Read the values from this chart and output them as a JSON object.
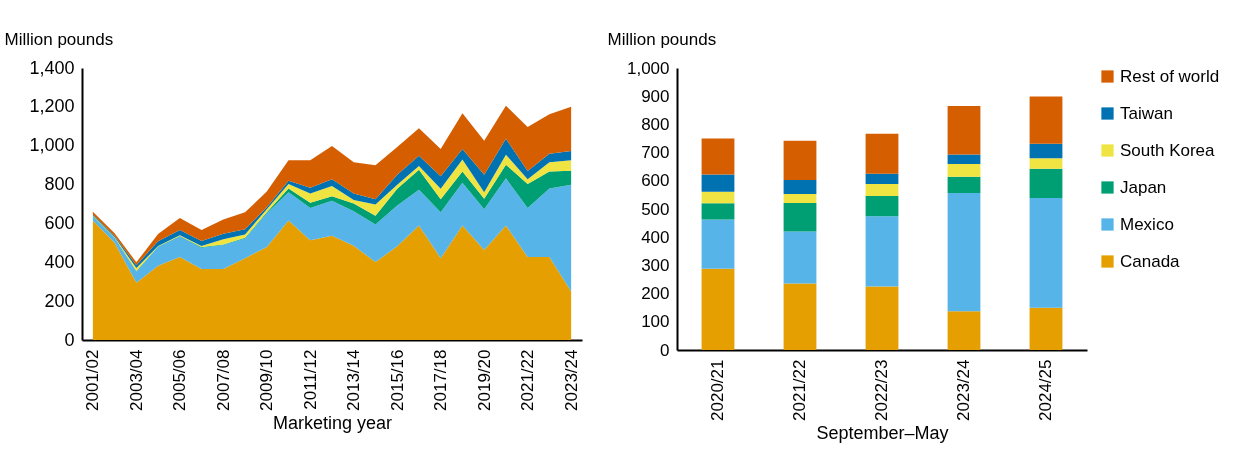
{
  "chart_data": [
    {
      "type": "area",
      "stacked": true,
      "ylabel": "Million pounds",
      "xlabel": "Marketing year",
      "categories": [
        "2001/02",
        null,
        "2003/04",
        null,
        "2005/06",
        null,
        "2007/08",
        null,
        "2009/10",
        null,
        "2011/12",
        null,
        "2013/14",
        null,
        "2015/16",
        null,
        "2017/18",
        null,
        "2019/20",
        null,
        "2021/22",
        null,
        "2023/24"
      ],
      "series": [
        {
          "color": "#e69f00",
          "values": [
            615,
            500,
            295,
            382,
            427,
            366,
            366,
            421,
            479,
            615,
            514,
            537,
            485,
            401,
            483,
            589,
            421,
            589,
            463,
            589,
            427,
            427,
            250
          ]
        },
        {
          "color": "#56b4e9",
          "values": [
            20,
            25,
            58,
            97,
            106,
            109,
            123,
            101,
            174,
            145,
            165,
            180,
            178,
            194,
            209,
            184,
            236,
            220,
            210,
            243,
            252,
            353,
            549
          ]
        },
        {
          "color": "#009e73",
          "values": [
            3,
            2,
            2,
            2,
            2,
            4,
            3,
            4,
            5,
            20,
            27,
            23,
            39,
            45,
            87,
            103,
            68,
            58,
            54,
            70,
            124,
            87,
            72
          ]
        },
        {
          "color": "#f0e442",
          "values": [
            3,
            3,
            15,
            3,
            4,
            5,
            26,
            17,
            15,
            23,
            48,
            53,
            19,
            58,
            20,
            20,
            54,
            62,
            33,
            52,
            25,
            48,
            54
          ]
        },
        {
          "color": "#0072b2",
          "values": [
            5,
            5,
            15,
            24,
            27,
            26,
            29,
            27,
            10,
            17,
            29,
            35,
            33,
            27,
            52,
            52,
            64,
            54,
            91,
            82,
            42,
            43,
            48
          ]
        },
        {
          "color": "#d55e00",
          "values": [
            14,
            15,
            15,
            37,
            62,
            56,
            73,
            87,
            81,
            105,
            142,
            171,
            161,
            175,
            142,
            142,
            140,
            184,
            175,
            170,
            226,
            204,
            228
          ]
        }
      ],
      "ylim": [
        0,
        1400
      ],
      "yticks": [
        0,
        {
          "value": 200,
          "label": "200"
        },
        {
          "value": 400,
          "label": "400"
        },
        {
          "value": 600,
          "label": "600"
        },
        {
          "value": 800,
          "label": "800"
        },
        {
          "value": 1000,
          "label": "1,000"
        },
        {
          "value": 1200,
          "label": "1,200"
        },
        {
          "value": 1400,
          "label": "1,400"
        }
      ],
      "grid": false
    },
    {
      "type": "bar",
      "stacked": true,
      "ylabel": "Million pounds",
      "xlabel": "September–May",
      "categories": [
        "2020/21",
        "2021/22",
        "2022/23",
        "2023/24",
        "2024/25"
      ],
      "series": [
        {
          "name": "Canada",
          "color": "#e69f00",
          "values": [
            288,
            236,
            225,
            137,
            150
          ]
        },
        {
          "name": "Mexico",
          "color": "#56b4e9",
          "values": [
            175,
            184,
            249,
            420,
            389
          ]
        },
        {
          "name": "Japan",
          "color": "#009e73",
          "values": [
            57,
            101,
            72,
            57,
            104
          ]
        },
        {
          "name": "South Korea",
          "color": "#f0e442",
          "values": [
            41,
            32,
            43,
            46,
            37
          ]
        },
        {
          "name": "Taiwan",
          "color": "#0072b2",
          "values": [
            61,
            50,
            36,
            33,
            51
          ]
        },
        {
          "name": "Rest of world",
          "color": "#d55e00",
          "values": [
            128,
            139,
            142,
            172,
            168
          ]
        }
      ],
      "ylim": [
        0,
        1000
      ],
      "yticks": [
        0,
        100,
        200,
        300,
        400,
        500,
        600,
        700,
        800,
        900,
        {
          "value": 1000,
          "label": "1,000"
        }
      ],
      "grid": false,
      "legend": "right"
    }
  ]
}
